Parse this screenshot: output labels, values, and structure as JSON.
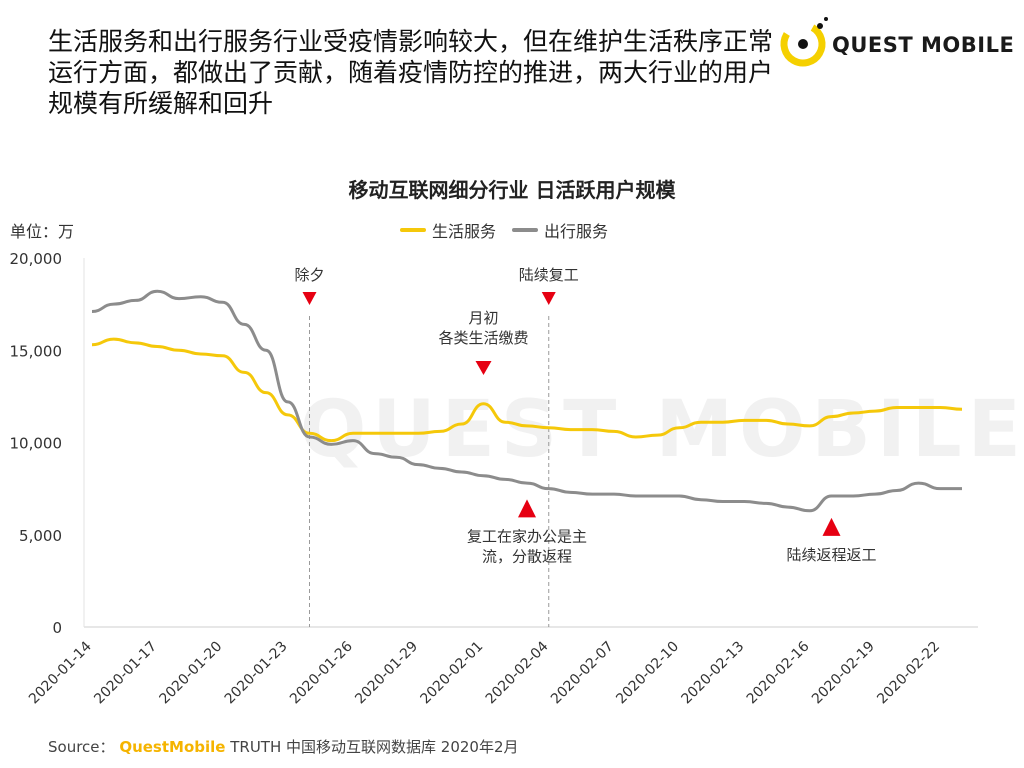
{
  "headline": "生活服务和出行服务行业受疫情影响较大，但在维护生活秩序正常运行方面，都做出了贡献，随着疫情防控的推进，两大行业的用户规模有所缓解和回升",
  "logo": {
    "text": "QUEST MOBILE",
    "icon": "quest-mobile-logo-icon",
    "color": "#f5d000"
  },
  "watermark": "QUEST MOBILE",
  "source": {
    "label": "Source：",
    "brand": "QuestMobile",
    "rest": "TRUTH 中国移动互联网数据库 2020年2月"
  },
  "chart_data": {
    "type": "line",
    "title": "移动互联网细分行业 日活跃用户规模",
    "unit_label": "单位：万",
    "ylim": [
      0,
      20000
    ],
    "yticks": [
      0,
      5000,
      10000,
      15000,
      20000
    ],
    "ytick_labels": [
      "0",
      "5,000",
      "10,000",
      "15,000",
      "20,000"
    ],
    "x": [
      "2020-01-14",
      "2020-01-15",
      "2020-01-16",
      "2020-01-17",
      "2020-01-18",
      "2020-01-19",
      "2020-01-20",
      "2020-01-21",
      "2020-01-22",
      "2020-01-23",
      "2020-01-24",
      "2020-01-25",
      "2020-01-26",
      "2020-01-27",
      "2020-01-28",
      "2020-01-29",
      "2020-01-30",
      "2020-01-31",
      "2020-02-01",
      "2020-02-02",
      "2020-02-03",
      "2020-02-04",
      "2020-02-05",
      "2020-02-06",
      "2020-02-07",
      "2020-02-08",
      "2020-02-09",
      "2020-02-10",
      "2020-02-11",
      "2020-02-12",
      "2020-02-13",
      "2020-02-14",
      "2020-02-15",
      "2020-02-16",
      "2020-02-17",
      "2020-02-18",
      "2020-02-19",
      "2020-02-20",
      "2020-02-21",
      "2020-02-22",
      "2020-02-23"
    ],
    "xtick_labels": [
      "2020-01-14",
      "2020-01-17",
      "2020-01-20",
      "2020-01-23",
      "2020-01-26",
      "2020-01-29",
      "2020-02-01",
      "2020-02-04",
      "2020-02-07",
      "2020-02-10",
      "2020-02-13",
      "2020-02-16",
      "2020-02-19",
      "2020-02-22"
    ],
    "series": [
      {
        "name": "生活服务",
        "color": "#f5c80a",
        "values": [
          15300,
          15600,
          15400,
          15200,
          15000,
          14800,
          14700,
          13800,
          12700,
          11500,
          10500,
          10100,
          10500,
          10500,
          10500,
          10500,
          10600,
          11000,
          12100,
          11100,
          10900,
          10800,
          10700,
          10700,
          10600,
          10300,
          10400,
          10800,
          11100,
          11100,
          11200,
          11200,
          11000,
          10900,
          11400,
          11600,
          11700,
          11900,
          11900,
          11900,
          11800
        ]
      },
      {
        "name": "出行服务",
        "color": "#8c8c8c",
        "values": [
          17100,
          17500,
          17700,
          18200,
          17800,
          17900,
          17600,
          16400,
          15000,
          12200,
          10300,
          9900,
          10100,
          9400,
          9200,
          8800,
          8600,
          8400,
          8200,
          8000,
          7800,
          7500,
          7300,
          7200,
          7200,
          7100,
          7100,
          7100,
          6900,
          6800,
          6800,
          6700,
          6500,
          6300,
          7100,
          7100,
          7200,
          7400,
          7800,
          7500,
          7500
        ]
      }
    ],
    "vlines": [
      {
        "x": "2020-01-24",
        "label": "除夕"
      },
      {
        "x": "2020-02-04",
        "label": "陆续复工"
      }
    ],
    "annotations": [
      {
        "x": "2020-02-01",
        "y": 14200,
        "direction": "down",
        "lines": [
          "月初",
          "各类生活缴费"
        ]
      },
      {
        "x": "2020-02-03",
        "y": 6700,
        "direction": "up",
        "lines": [
          "复工在家办公是主",
          "流，分散返程"
        ]
      },
      {
        "x": "2020-02-17",
        "y": 5700,
        "direction": "up",
        "lines": [
          "陆续返程返工"
        ]
      }
    ],
    "marker_color": "#e60012",
    "grid": false,
    "legend_position": "top-center"
  }
}
